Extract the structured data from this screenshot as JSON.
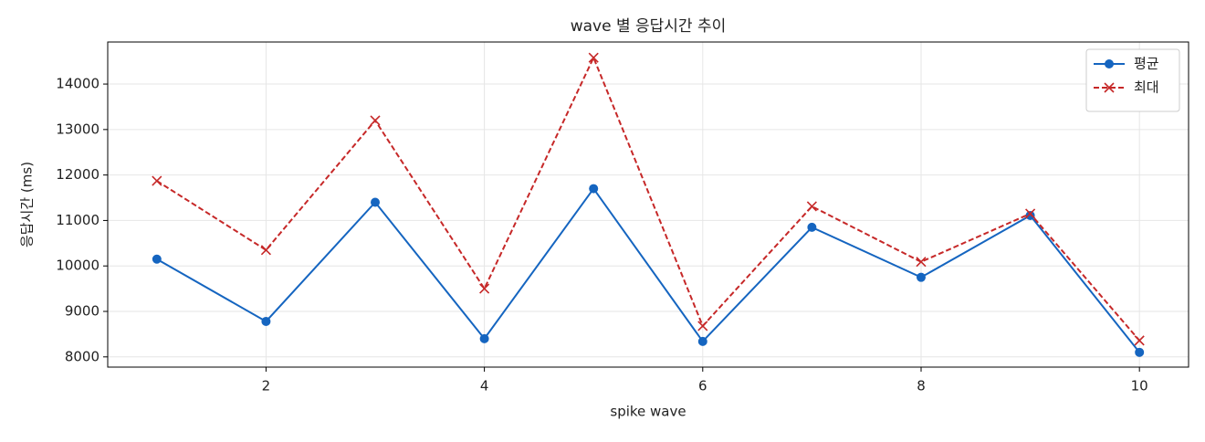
{
  "chart_data": {
    "type": "line",
    "title": "wave 별 응답시간 추이",
    "xlabel": "spike wave",
    "ylabel": "응답시간 (ms)",
    "x": [
      1,
      2,
      3,
      4,
      5,
      6,
      7,
      8,
      9,
      10
    ],
    "series": [
      {
        "name": "평균",
        "color": "#1565c0",
        "marker": "o",
        "dash": false,
        "values": [
          10150,
          8780,
          11400,
          8400,
          11700,
          8340,
          10850,
          9750,
          11110,
          8100
        ]
      },
      {
        "name": "최대",
        "color": "#c62828",
        "marker": "x",
        "dash": true,
        "values": [
          11870,
          10350,
          13200,
          9500,
          14580,
          8680,
          11310,
          10090,
          11150,
          8360
        ]
      }
    ],
    "xlim": [
      0.55,
      10.45
    ],
    "xticks": [
      2,
      4,
      6,
      8,
      10
    ],
    "ylim": [
      7775,
      14925
    ],
    "yticks": [
      8000,
      9000,
      10000,
      11000,
      12000,
      13000,
      14000
    ],
    "grid": true,
    "legend": "upper right"
  }
}
